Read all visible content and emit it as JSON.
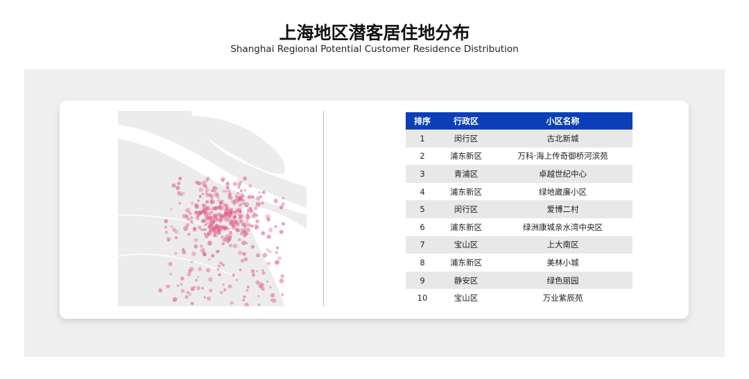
{
  "title": "上海地区潜客居住地分布",
  "subtitle": "Shanghai Regional Potential Customer Residence Distribution",
  "colors": {
    "header_bg": "#0b3fb8",
    "dot": "#e0628e",
    "panel": "#efefef"
  },
  "table": {
    "headers": [
      "排序",
      "行政区",
      "小区名称"
    ],
    "rows": [
      [
        "1",
        "闵行区",
        "古北新城"
      ],
      [
        "2",
        "浦东新区",
        "万科·海上传奇御桥河滨苑"
      ],
      [
        "3",
        "青浦区",
        "卓越世纪中心"
      ],
      [
        "4",
        "浦东新区",
        "绿地崴廉小区"
      ],
      [
        "5",
        "闵行区",
        "爱博二村"
      ],
      [
        "6",
        "浦东新区",
        "绿洲康城亲水湾中央区"
      ],
      [
        "7",
        "宝山区",
        "上大南区"
      ],
      [
        "8",
        "浦东新区",
        "美林小城"
      ],
      [
        "9",
        "静安区",
        "绿色丽园"
      ],
      [
        "10",
        "宝山区",
        "万业紫辰苑"
      ]
    ]
  }
}
